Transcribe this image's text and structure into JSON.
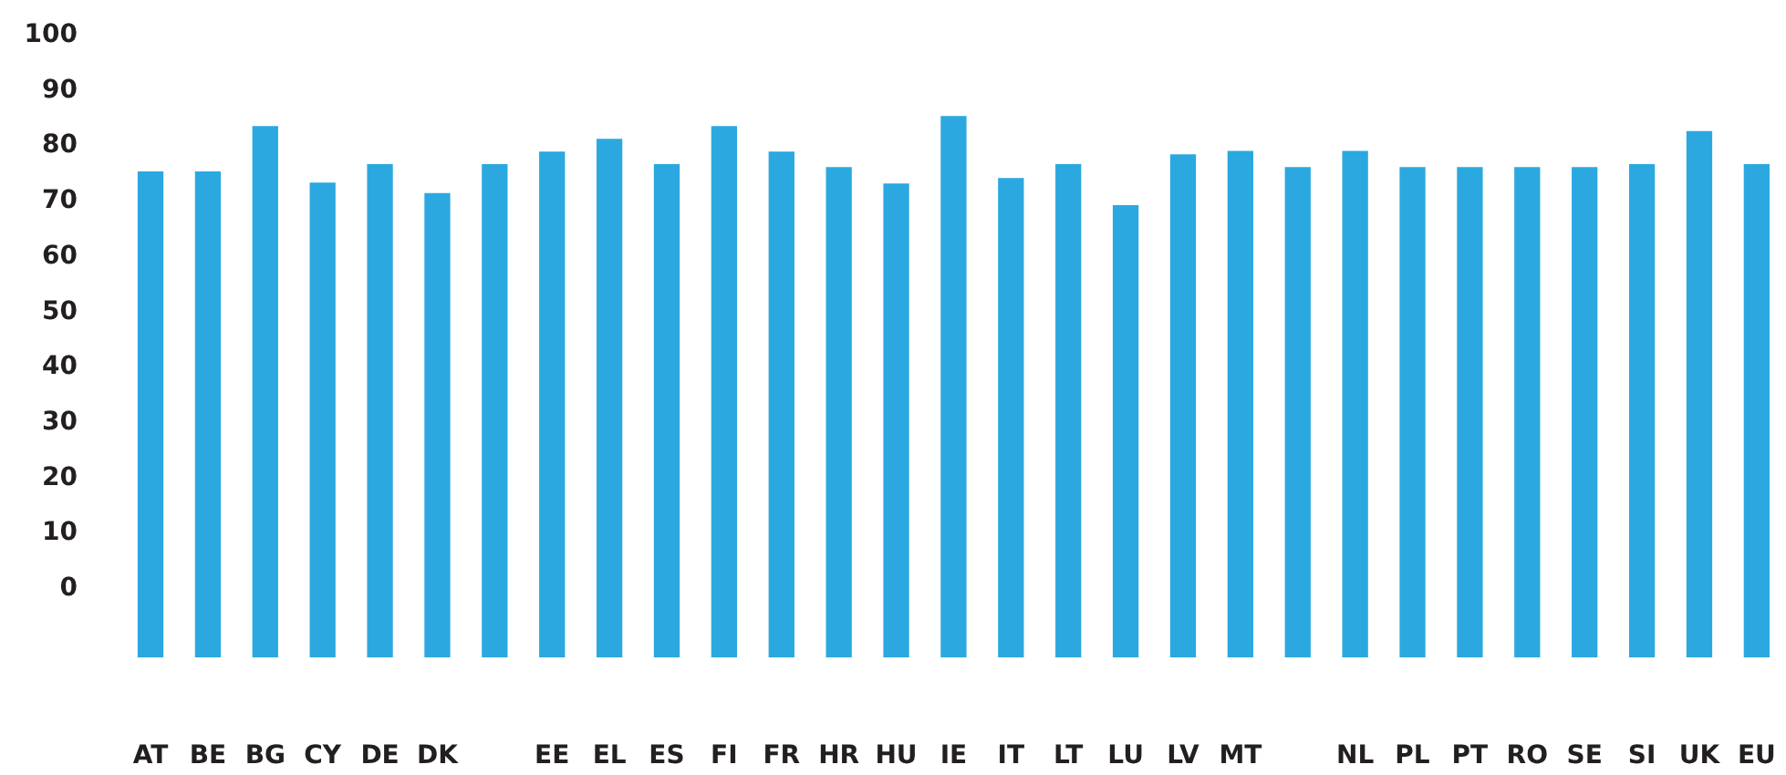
{
  "chart_data": {
    "type": "bar",
    "categories": [
      "AT",
      "BE",
      "BG",
      "CY",
      "DE",
      "DK",
      null,
      "EE",
      "EL",
      "ES",
      "FI",
      "FR",
      "HR",
      "HU",
      "IE",
      "IT",
      "LT",
      "LU",
      "LV",
      "MT",
      null,
      "NL",
      "PL",
      "PT",
      "RO",
      "SE",
      "SI",
      "UK",
      "EU"
    ],
    "base": [
      -13,
      -13,
      -13,
      -13,
      -13,
      -13,
      -13,
      -13,
      -13,
      -13,
      -13,
      -13,
      -13,
      -13,
      -13,
      -13,
      -13,
      -13,
      -13,
      -13,
      -13,
      -13,
      -13,
      -13,
      -13,
      -13,
      -13,
      -13,
      -13
    ],
    "values": [
      87.8,
      87.8,
      96,
      85.8,
      89.1,
      83.9,
      89.1,
      91.4,
      93.7,
      89.1,
      96,
      91.4,
      88.6,
      85.6,
      97.8,
      86.6,
      89.1,
      81.7,
      90.9,
      91.5,
      88.6,
      91.5,
      88.6,
      88.6,
      88.6,
      88.6,
      89.1,
      95.1,
      89.1
    ],
    "color": "#2ba8e0",
    "ylim": [
      -13,
      100
    ],
    "yticks": [
      0,
      10,
      20,
      30,
      40,
      50,
      60,
      70,
      80,
      90,
      100
    ],
    "grid": false
  }
}
